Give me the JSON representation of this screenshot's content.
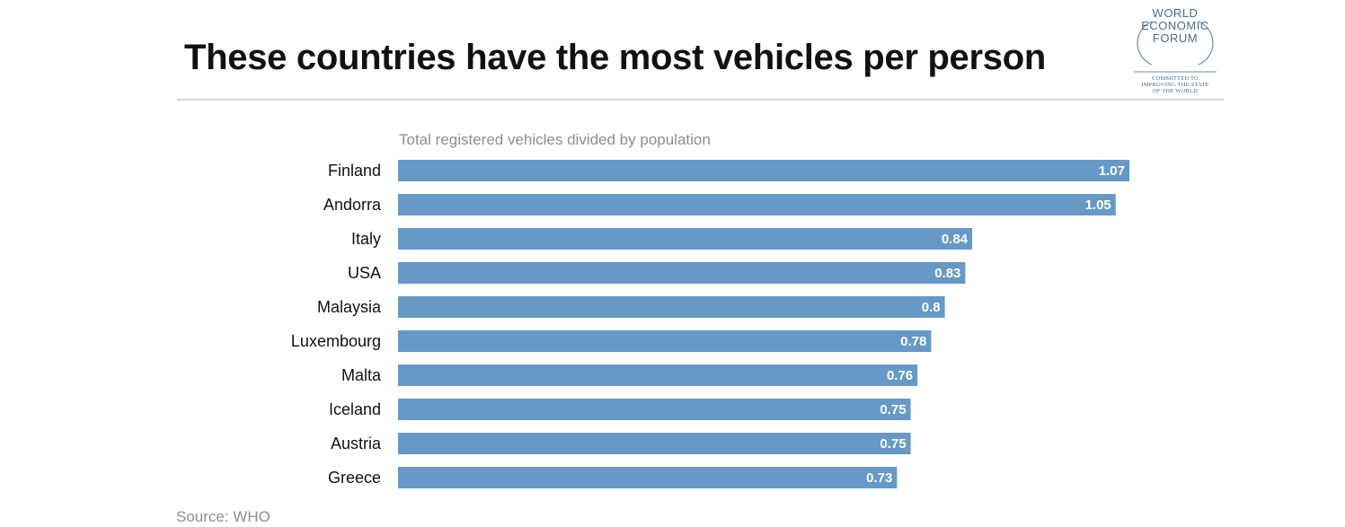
{
  "chart_data": {
    "type": "bar",
    "orientation": "horizontal",
    "title": "These countries have the most vehicles per person",
    "subtitle": "Total registered vehicles divided by population",
    "categories": [
      "Finland",
      "Andorra",
      "Italy",
      "USA",
      "Malaysia",
      "Luxembourg",
      "Malta",
      "Iceland",
      "Austria",
      "Greece"
    ],
    "values": [
      1.07,
      1.05,
      0.84,
      0.83,
      0.8,
      0.78,
      0.76,
      0.75,
      0.75,
      0.73
    ],
    "value_labels": [
      "1.07",
      "1.05",
      "0.84",
      "0.83",
      "0.8",
      "0.78",
      "0.76",
      "0.75",
      "0.75",
      "0.73"
    ],
    "xlim": [
      0,
      1.07
    ],
    "grid": false,
    "legend": "none",
    "bar_color": "#6699c6",
    "source": "Source: WHO"
  },
  "logo": {
    "lines": [
      "WORLD",
      "ECONOMIC",
      "FORUM"
    ],
    "tagline": [
      "COMMITTED TO",
      "IMPROVING THE STATE",
      "OF THE WORLD"
    ],
    "color": "#4a6c8c"
  }
}
